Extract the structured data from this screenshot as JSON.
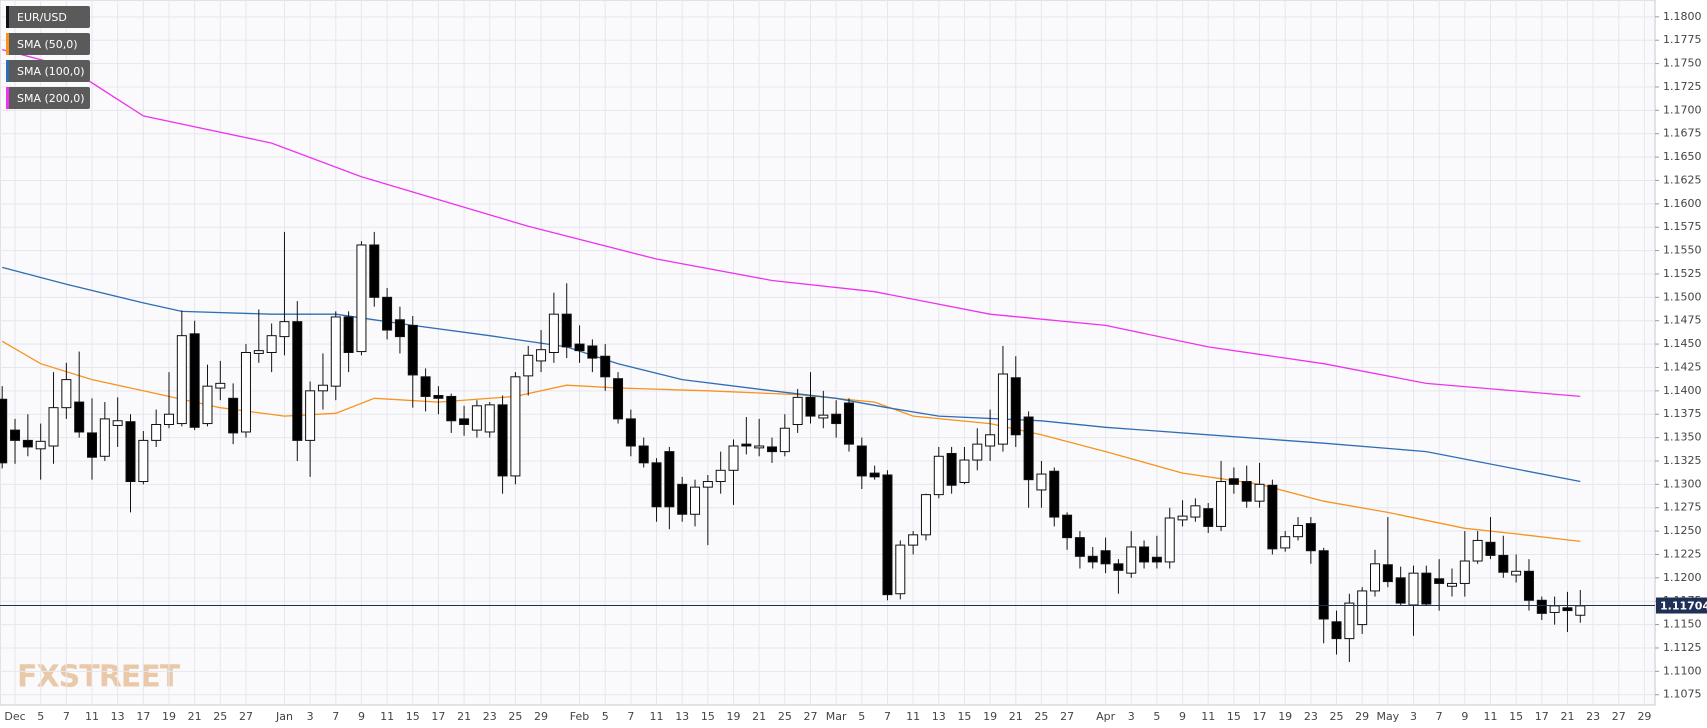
{
  "chart_data": {
    "type": "candlestick",
    "up_color": "#ffffff",
    "down_color": "#000000",
    "grid": true,
    "legend": "top-left",
    "watermark": "FXSTREET",
    "categories": [
      null,
      "Dec",
      null,
      "5",
      null,
      "7",
      null,
      "11",
      null,
      "13",
      null,
      "17",
      null,
      "19",
      null,
      "21",
      null,
      "25",
      null,
      "27",
      null,
      null,
      "Jan",
      null,
      "3",
      null,
      "7",
      null,
      "9",
      null,
      "11",
      null,
      "15",
      null,
      "17",
      null,
      "21",
      null,
      "23",
      null,
      "25",
      null,
      "29",
      null,
      null,
      "Feb",
      null,
      "5",
      null,
      "7",
      null,
      "11",
      null,
      "13",
      null,
      "15",
      null,
      "19",
      null,
      "21",
      null,
      "25",
      null,
      "27",
      null,
      "Mar",
      null,
      "5",
      null,
      "7",
      null,
      "11",
      null,
      "13",
      null,
      "15",
      null,
      "19",
      null,
      "21",
      null,
      "25",
      null,
      "27",
      null,
      null,
      "Apr",
      null,
      "3",
      null,
      "5",
      null,
      "9",
      null,
      "11",
      null,
      "15",
      null,
      "17",
      null,
      "19",
      null,
      "23",
      null,
      "25",
      null,
      "29",
      null,
      "May",
      null,
      "3",
      null,
      "7",
      null,
      "9",
      null,
      "11",
      null,
      "15",
      null,
      "17",
      null,
      "21",
      null,
      "23",
      null,
      "27",
      null,
      "29"
    ],
    "series": [
      {
        "name": "EUR/USD",
        "color": "#111111",
        "open": [
          1.1391,
          1.1358,
          1.1347,
          1.1338,
          1.1341,
          1.1382,
          1.1388,
          1.1355,
          1.133,
          1.1363,
          1.1367,
          1.1303,
          1.1347,
          1.1364,
          1.1365,
          1.1461,
          1.1365,
          1.1403,
          1.1392,
          1.1356,
          1.144,
          1.1441,
          1.1458,
          1.1474,
          1.1347,
          1.14,
          1.1405,
          1.1479,
          1.1442,
          1.1556,
          1.15,
          1.1476,
          1.147,
          1.1415,
          1.1395,
          1.1394,
          1.137,
          1.1358,
          1.1356,
          1.1385,
          1.1309,
          1.1416,
          1.1432,
          1.1441,
          1.1482,
          1.145,
          1.1448,
          1.1437,
          1.1413,
          1.137,
          1.1341,
          1.1323,
          1.1335,
          1.13,
          1.1268,
          1.1297,
          1.1303,
          1.1315,
          1.1343,
          1.1339,
          1.134,
          1.1335,
          1.1364,
          1.1393,
          1.1371,
          1.1375,
          1.1387,
          1.1341,
          1.1312,
          1.131,
          1.1183,
          1.1235,
          1.1246,
          1.1289,
          1.1333,
          1.1302,
          1.1326,
          1.1341,
          1.1343,
          1.1414,
          1.1372,
          1.1294,
          1.1314,
          1.1267,
          1.1243,
          1.1223,
          1.1229,
          1.1215,
          1.1205,
          1.1233,
          1.1222,
          1.1217,
          1.1262,
          1.1265,
          1.1274,
          1.1255,
          1.1306,
          1.1303,
          1.1282,
          1.1299,
          1.1232,
          1.1244,
          1.1258,
          1.1229,
          1.1153,
          1.1135,
          1.115,
          1.1186,
          1.1214,
          1.12,
          1.1171,
          1.1205,
          1.1199,
          1.1191,
          1.1194,
          1.1218,
          1.1238,
          1.1224,
          1.1203,
          1.1207,
          1.1176,
          1.1163,
          1.1168,
          1.116,
          null,
          null,
          null,
          null,
          null
        ],
        "high": [
          1.1405,
          1.137,
          1.1375,
          1.1365,
          1.142,
          1.143,
          1.1442,
          1.1392,
          1.1388,
          1.1393,
          1.1375,
          1.1357,
          1.138,
          1.142,
          1.1486,
          1.1475,
          1.1428,
          1.1432,
          1.1408,
          1.145,
          1.1487,
          1.1472,
          1.157,
          1.1496,
          1.141,
          1.144,
          1.1485,
          1.1485,
          1.156,
          1.157,
          1.151,
          1.149,
          1.148,
          1.1424,
          1.1405,
          1.1397,
          1.1384,
          1.139,
          1.1388,
          1.1395,
          1.142,
          1.1448,
          1.1465,
          1.1505,
          1.1515,
          1.147,
          1.1455,
          1.145,
          1.142,
          1.138,
          1.135,
          1.1328,
          1.134,
          1.1308,
          1.1305,
          1.131,
          1.1335,
          1.1348,
          1.1372,
          1.137,
          1.135,
          1.1375,
          1.1402,
          1.142,
          1.14,
          1.139,
          1.1392,
          1.135,
          1.132,
          1.1315,
          1.124,
          1.125,
          1.129,
          1.134,
          1.134,
          1.134,
          1.136,
          1.138,
          1.1448,
          1.1437,
          1.1378,
          1.1325,
          1.1318,
          1.127,
          1.125,
          1.1233,
          1.1243,
          1.122,
          1.125,
          1.124,
          1.1245,
          1.1275,
          1.1283,
          1.1285,
          1.128,
          1.1325,
          1.1318,
          1.132,
          1.1323,
          1.1305,
          1.125,
          1.1265,
          1.1265,
          1.1232,
          1.1165,
          1.1183,
          1.119,
          1.123,
          1.1265,
          1.1212,
          1.1213,
          1.1213,
          1.122,
          1.121,
          1.125,
          1.125,
          1.1265,
          1.1245,
          1.1225,
          1.122,
          1.118,
          1.118,
          1.1185,
          1.1187,
          null,
          null,
          null,
          null,
          null
        ],
        "low": [
          1.1317,
          1.1322,
          1.133,
          1.1305,
          1.1322,
          1.137,
          1.135,
          1.1305,
          1.1325,
          1.134,
          1.127,
          1.13,
          1.134,
          1.136,
          1.1362,
          1.1358,
          1.1362,
          1.139,
          1.1343,
          1.135,
          1.143,
          1.142,
          1.1438,
          1.1325,
          1.1308,
          1.138,
          1.139,
          1.142,
          1.1438,
          1.149,
          1.1455,
          1.144,
          1.1382,
          1.1378,
          1.1375,
          1.1355,
          1.1352,
          1.135,
          1.135,
          1.129,
          1.13,
          1.1395,
          1.142,
          1.143,
          1.1435,
          1.143,
          1.142,
          1.14,
          1.1365,
          1.133,
          1.1318,
          1.126,
          1.1252,
          1.126,
          1.1255,
          1.1235,
          1.129,
          1.1278,
          1.1332,
          1.133,
          1.1323,
          1.133,
          1.1355,
          1.1365,
          1.136,
          1.135,
          1.1335,
          1.1295,
          1.1305,
          1.1176,
          1.1177,
          1.1225,
          1.124,
          1.1285,
          1.129,
          1.13,
          1.1315,
          1.1325,
          1.1335,
          1.134,
          1.1275,
          1.1275,
          1.1255,
          1.123,
          1.121,
          1.121,
          1.1205,
          1.1183,
          1.12,
          1.121,
          1.121,
          1.121,
          1.1255,
          1.126,
          1.1248,
          1.125,
          1.129,
          1.1275,
          1.1275,
          1.1225,
          1.1228,
          1.124,
          1.1215,
          1.113,
          1.1118,
          1.111,
          1.114,
          1.118,
          1.119,
          1.117,
          1.1138,
          1.117,
          1.1165,
          1.118,
          1.118,
          1.1215,
          1.122,
          1.12,
          1.1195,
          1.1165,
          1.1155,
          1.115,
          1.1142,
          1.1152,
          null,
          null,
          null,
          null,
          null
        ],
        "close": [
          1.1323,
          1.1347,
          1.134,
          1.1346,
          1.1382,
          1.1412,
          1.1356,
          1.1329,
          1.137,
          1.1368,
          1.1303,
          1.1347,
          1.1364,
          1.1375,
          1.1459,
          1.1361,
          1.1405,
          1.1408,
          1.1355,
          1.1441,
          1.1443,
          1.1459,
          1.1474,
          1.1347,
          1.14,
          1.1406,
          1.1479,
          1.1441,
          1.1556,
          1.15,
          1.1465,
          1.1458,
          1.1417,
          1.1394,
          1.1392,
          1.1368,
          1.1364,
          1.1384,
          1.1385,
          1.1309,
          1.1415,
          1.1438,
          1.1444,
          1.1482,
          1.1447,
          1.1443,
          1.1435,
          1.1415,
          1.137,
          1.1341,
          1.1323,
          1.1276,
          1.1276,
          1.1268,
          1.1297,
          1.1303,
          1.1315,
          1.1341,
          1.1341,
          1.1341,
          1.1335,
          1.136,
          1.1393,
          1.1373,
          1.1374,
          1.1365,
          1.1343,
          1.1309,
          1.1308,
          1.1182,
          1.1235,
          1.1246,
          1.1289,
          1.133,
          1.1299,
          1.1326,
          1.1343,
          1.1353,
          1.1418,
          1.1353,
          1.1305,
          1.1311,
          1.1265,
          1.1243,
          1.1223,
          1.1217,
          1.1215,
          1.1208,
          1.1233,
          1.1217,
          1.1217,
          1.1264,
          1.1266,
          1.1277,
          1.1255,
          1.1303,
          1.13,
          1.1282,
          1.13,
          1.1231,
          1.1244,
          1.1256,
          1.1229,
          1.1156,
          1.1135,
          1.1173,
          1.1186,
          1.1215,
          1.1196,
          1.1173,
          1.1205,
          1.1172,
          1.1194,
          1.1194,
          1.1218,
          1.124,
          1.1224,
          1.1206,
          1.1207,
          1.1176,
          1.1162,
          1.117,
          1.1165,
          1.117,
          null,
          null,
          null,
          null,
          null
        ]
      }
    ],
    "overlays": [
      {
        "name": "SMA (50,0)",
        "color": "#f7931e",
        "x": [
          0,
          3,
          7,
          11,
          17,
          22,
          26,
          29,
          34,
          40,
          44,
          48,
          55,
          62,
          68,
          71,
          77,
          81,
          86,
          92,
          98,
          103,
          108,
          114,
          118,
          123
        ],
        "values": [
          1.1453,
          1.1429,
          1.1412,
          1.14,
          1.1382,
          1.1373,
          1.1376,
          1.1392,
          1.1388,
          1.1394,
          1.1406,
          1.1403,
          1.14,
          1.1396,
          1.1388,
          1.1373,
          1.1365,
          1.1353,
          1.1335,
          1.1312,
          1.13,
          1.1282,
          1.127,
          1.1253,
          1.1247,
          1.1239
        ]
      },
      {
        "name": "SMA (100,0)",
        "color": "#2f6db5",
        "x": [
          0,
          5,
          11,
          14,
          21,
          26,
          32,
          38,
          44,
          48,
          53,
          60,
          65,
          69,
          73,
          81,
          86,
          94,
          103,
          111,
          123
        ],
        "values": [
          1.1532,
          1.1514,
          1.1494,
          1.1485,
          1.1482,
          1.1482,
          1.147,
          1.1459,
          1.1447,
          1.1429,
          1.1412,
          1.14,
          1.1392,
          1.1382,
          1.1373,
          1.1368,
          1.1361,
          1.1353,
          1.1344,
          1.1335,
          1.1303
        ]
      },
      {
        "name": "SMA (200,0)",
        "color": "#ee33ee",
        "x": [
          0,
          5,
          11,
          21,
          28,
          41,
          51,
          60,
          68,
          77,
          86,
          94,
          103,
          111,
          123
        ],
        "values": [
          1.1765,
          1.1747,
          1.1694,
          1.1665,
          1.1629,
          1.1576,
          1.1541,
          1.1518,
          1.1506,
          1.1482,
          1.147,
          1.1447,
          1.1429,
          1.1408,
          1.1394
        ]
      }
    ],
    "last_price": {
      "value": 1.11704,
      "label": "1.11704",
      "color": "#1f3057"
    },
    "ylim": [
      1.1064,
      1.1818
    ],
    "yticks": [
      1.1075,
      {
        "value": 1.11,
        "label": "1.1100"
      },
      1.1125,
      {
        "value": 1.115,
        "label": "1.1150"
      },
      1.1175,
      {
        "value": 1.12,
        "label": "1.1200"
      },
      1.1225,
      {
        "value": 1.125,
        "label": "1.1250"
      },
      1.1275,
      {
        "value": 1.13,
        "label": "1.1300"
      },
      1.1325,
      {
        "value": 1.135,
        "label": "1.1350"
      },
      1.1375,
      {
        "value": 1.14,
        "label": "1.1400"
      },
      1.1425,
      {
        "value": 1.145,
        "label": "1.1450"
      },
      1.1475,
      {
        "value": 1.15,
        "label": "1.1500"
      },
      1.1525,
      {
        "value": 1.155,
        "label": "1.1550"
      },
      1.1575,
      {
        "value": 1.16,
        "label": "1.1600"
      },
      1.1625,
      {
        "value": 1.165,
        "label": "1.1650"
      },
      1.1675,
      {
        "value": 1.17,
        "label": "1.1700"
      },
      1.1725,
      {
        "value": 1.175,
        "label": "1.1750"
      },
      1.1775,
      {
        "value": 1.18,
        "label": "1.1800"
      }
    ]
  }
}
